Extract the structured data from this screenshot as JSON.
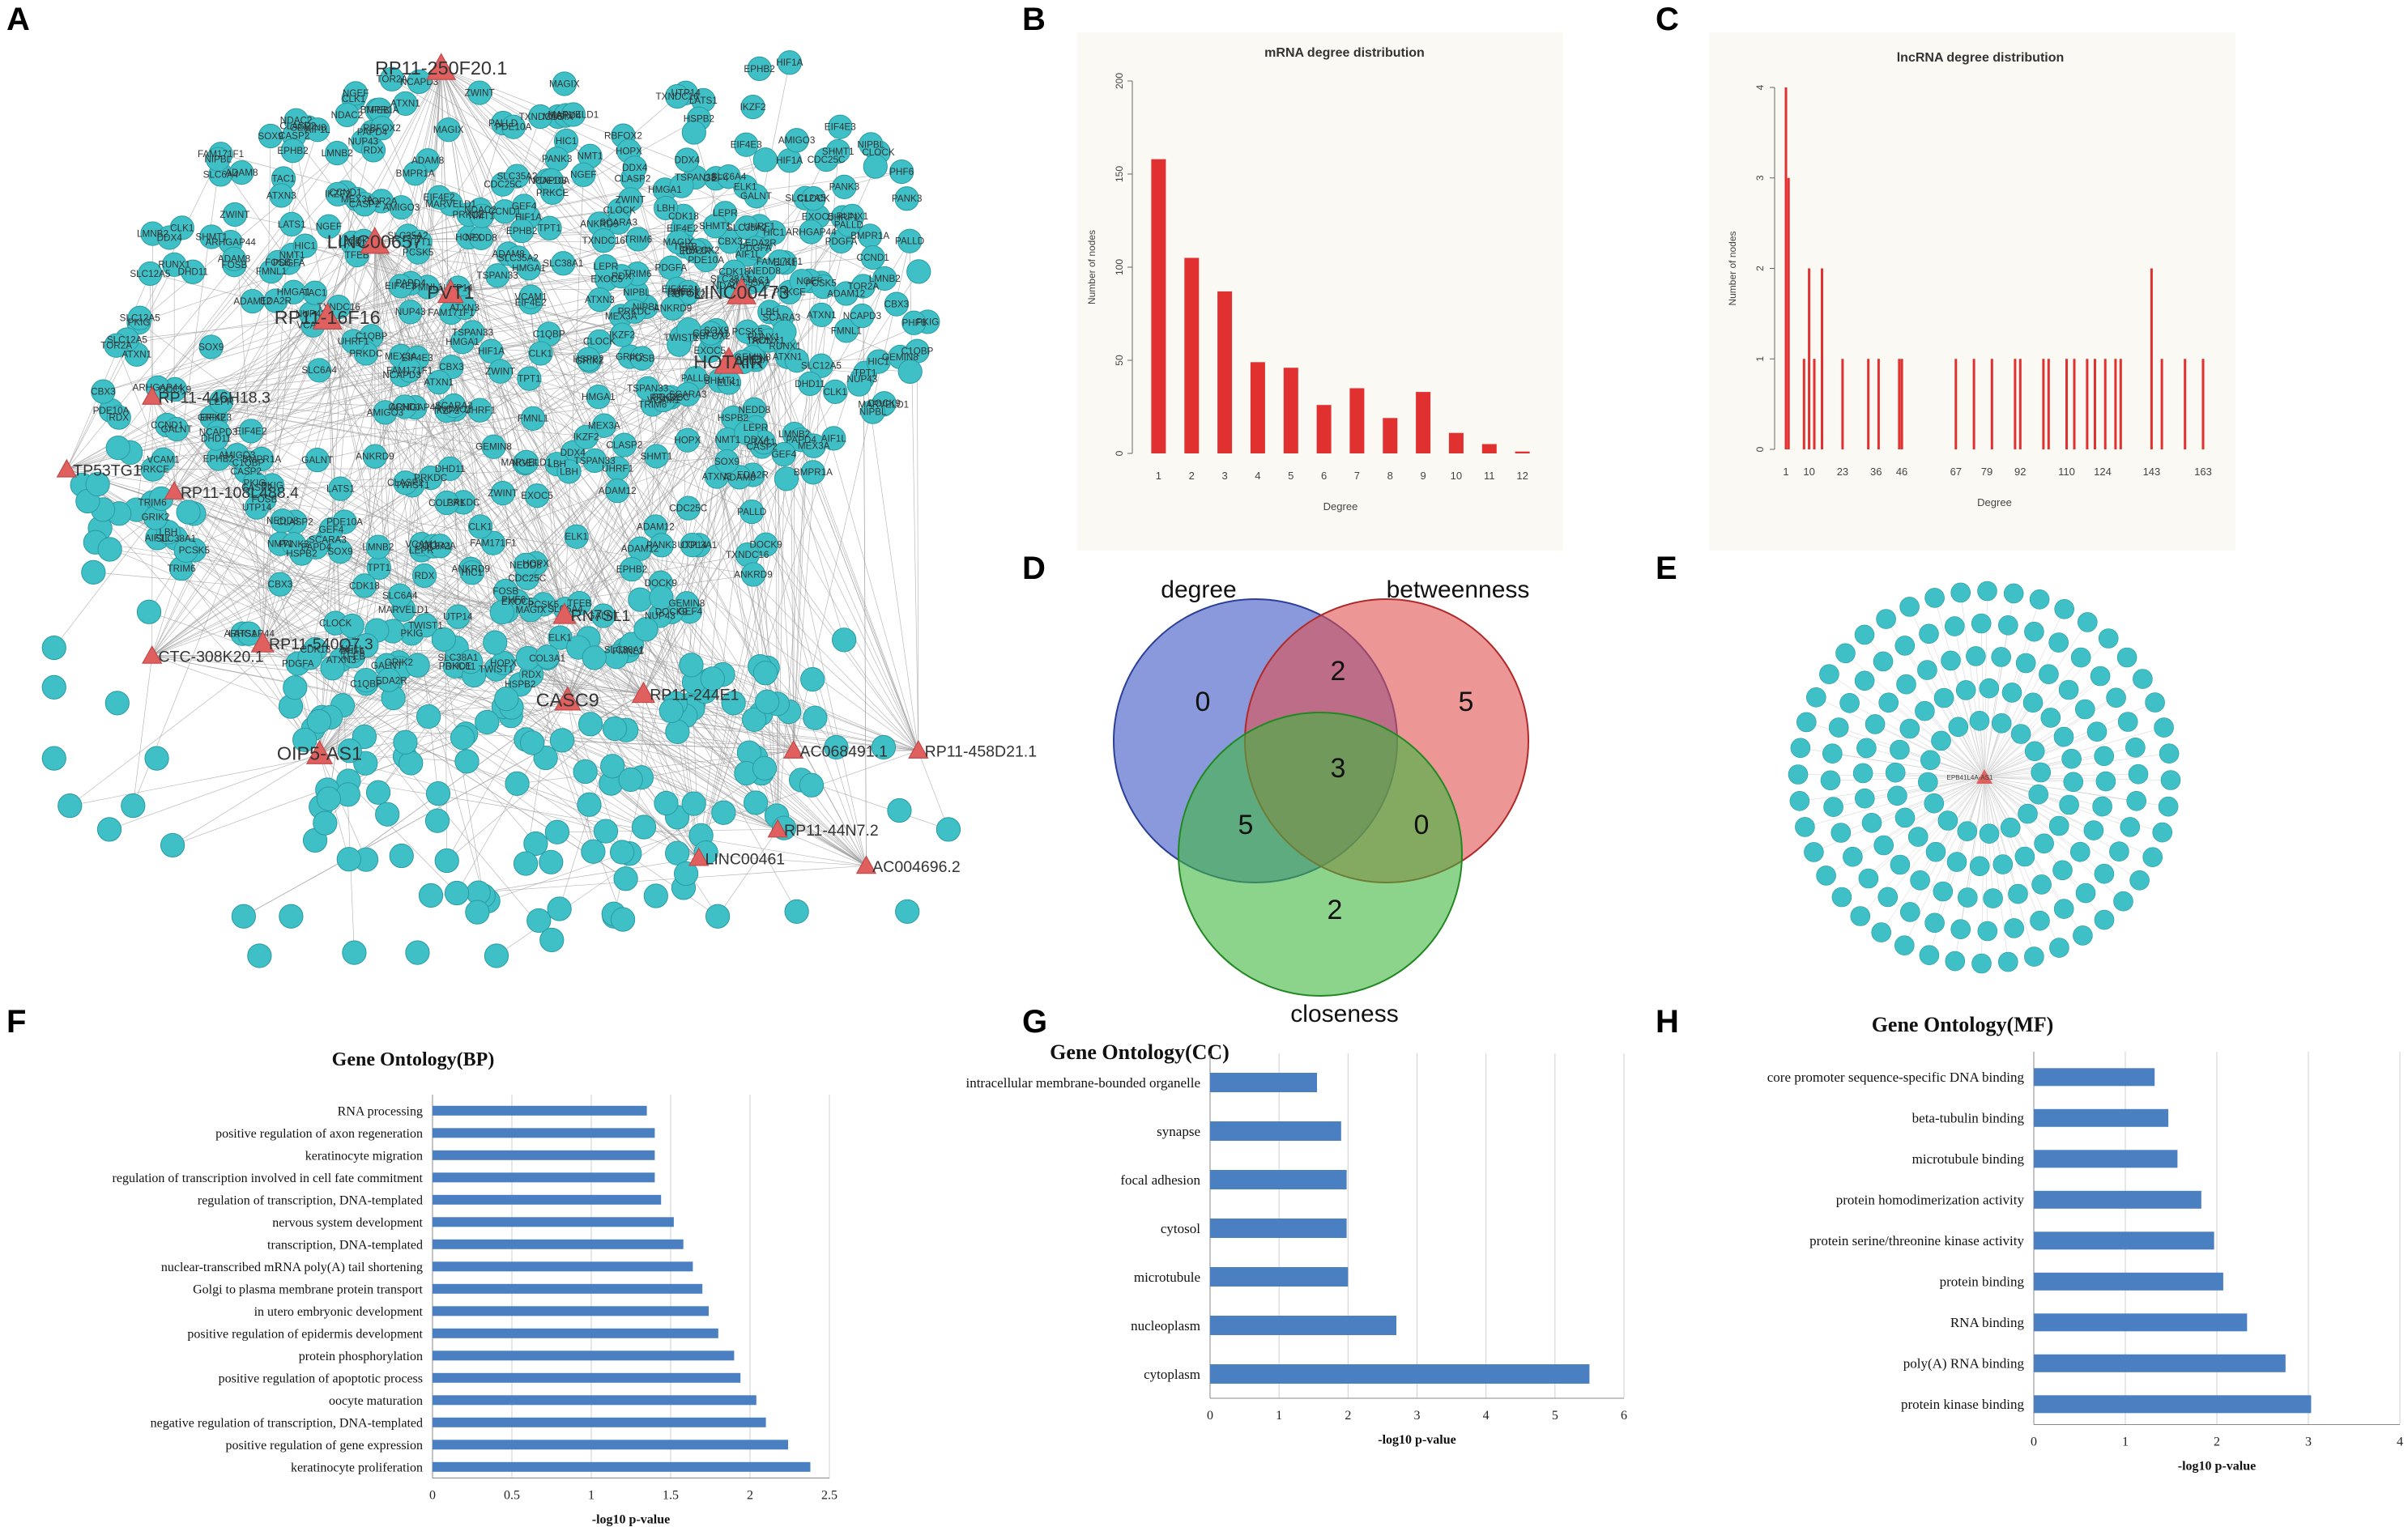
{
  "panels": {
    "A": "A",
    "B": "B",
    "C": "C",
    "D": "D",
    "E": "E",
    "F": "F",
    "G": "G",
    "H": "H"
  },
  "colors": {
    "node": "#3fbfc6",
    "nodeStroke": "#2a9aa1",
    "triangle": "#e06060",
    "edge": "#9a9a9a",
    "bar": "#e03030",
    "goBar": "#4a7fc1"
  },
  "network_A": {
    "lncrna_labels": [
      "RP11-250F20.1",
      "LINC00657",
      "RP11-446H18.3",
      "RP11-108L488.4",
      "RP11-540Q7.3",
      "CTC-308K20.1",
      "TP53TG1",
      "CASC9",
      "OIP5-AS1",
      "LINC00461",
      "RP11-244E1",
      "RN7SL1",
      "RP11-44N7.2",
      "AC004696.2",
      "AC068491.1",
      "RP11-458D21.1",
      "HOTAIR",
      "PVT1",
      "LINC00473",
      "RP11-16F16"
    ],
    "gene_labels": [
      "LATS1",
      "FAM171F1",
      "LMNB2",
      "SLC38A1",
      "TFEB",
      "MARVELD1",
      "ADAM8",
      "NUP43",
      "COL3A1",
      "TSPAN33",
      "ADAM12",
      "EIF4E2",
      "RDX",
      "EDA2R",
      "CASP2",
      "HMGA1",
      "ELK1",
      "NMT1",
      "EXOC5",
      "HOPX",
      "TRIM6",
      "TPT1",
      "PKIG",
      "FMNL1",
      "C1QBP",
      "TOR2A",
      "SLC35A2",
      "CLASP2",
      "AIF1L",
      "ARHGAP44",
      "PRKDC",
      "CBX3",
      "LEPR",
      "GALNT",
      "NCAPD3",
      "SLC12A5",
      "ZWINT",
      "HSPB2",
      "EPHB2",
      "CDK18",
      "PDE10A",
      "PCSK5",
      "RBFOX2",
      "NEDD8",
      "NGEF",
      "HIC1",
      "GRIK2",
      "SHMT1",
      "SLC6A4",
      "GEMIN8",
      "DHD11",
      "DOCK9",
      "UHRF1",
      "PRKCE",
      "ATXN3",
      "TWIST1",
      "FOSB",
      "CDC25C",
      "BMPR1A",
      "MAGIX",
      "CLK1",
      "NDAC2",
      "UTP14",
      "TAC1",
      "CCND1",
      "SOX9",
      "PAPD4",
      "VCAM1",
      "MEX3A",
      "CLOCK",
      "SCARA3",
      "ANKRD9",
      "PANK3",
      "RUNX1",
      "ATXN1",
      "HIF1A",
      "EIF4E3",
      "GEF4",
      "IKZF2",
      "PDGFA",
      "DDX4",
      "LBH",
      "PALLD",
      "AMIGO3",
      "PHF6",
      "NIPBL",
      "TXNDC16"
    ],
    "lncrna": [
      {
        "label": "RP11-250F20.1",
        "x": 265,
        "y": 38,
        "s": 18
      },
      {
        "label": "LINC00657",
        "x": 223,
        "y": 148,
        "s": 18
      },
      {
        "label": "RP11-16F16",
        "x": 193,
        "y": 196,
        "s": 18
      },
      {
        "label": "LINC00473",
        "x": 455,
        "y": 180,
        "s": 18
      },
      {
        "label": "HOTAIR",
        "x": 447,
        "y": 224,
        "s": 18
      },
      {
        "label": "PVT1",
        "x": 271,
        "y": 180,
        "s": 16
      },
      {
        "label": "RP11-446H18.3",
        "x": 82,
        "y": 246,
        "s": 12
      },
      {
        "label": "TP53TG1",
        "x": 28,
        "y": 292,
        "s": 12
      },
      {
        "label": "RP11-108L488.4",
        "x": 96,
        "y": 306,
        "s": 12
      },
      {
        "label": "RP11-540Q7.3",
        "x": 152,
        "y": 402,
        "s": 14
      },
      {
        "label": "CTC-308K20.1",
        "x": 82,
        "y": 410,
        "s": 12
      },
      {
        "label": "CASC9",
        "x": 345,
        "y": 438,
        "s": 16
      },
      {
        "label": "OIP5-AS1",
        "x": 188,
        "y": 472,
        "s": 16
      },
      {
        "label": "RN7SL1",
        "x": 343,
        "y": 384,
        "s": 14
      },
      {
        "label": "RP11-244E1",
        "x": 393,
        "y": 434,
        "s": 14
      },
      {
        "label": "LINC00461",
        "x": 428,
        "y": 538,
        "s": 12
      },
      {
        "label": "RP11-44N7.2",
        "x": 478,
        "y": 520,
        "s": 12
      },
      {
        "label": "AC004696.2",
        "x": 534,
        "y": 543,
        "s": 12
      },
      {
        "label": "AC068491.1",
        "x": 488,
        "y": 470,
        "s": 12
      },
      {
        "label": "RP11-458D21.1",
        "x": 567,
        "y": 470,
        "s": 12
      }
    ]
  },
  "chart_data": [
    {
      "type": "bar",
      "panel": "B",
      "title": "mRNA degree distribution",
      "xlabel": "Degree",
      "ylabel": "Number of nodes",
      "categories": [
        "1",
        "2",
        "3",
        "4",
        "5",
        "6",
        "7",
        "8",
        "9",
        "10",
        "11",
        "12"
      ],
      "values": [
        158,
        105,
        87,
        49,
        46,
        26,
        35,
        19,
        33,
        11,
        5,
        1
      ],
      "ylim": [
        0,
        200
      ],
      "yticks": [
        "0",
        "50",
        "100",
        "150",
        "200"
      ]
    },
    {
      "type": "bar",
      "panel": "C",
      "title": "lncRNA degree distribution",
      "xlabel": "Degree",
      "ylabel": "Number of nodes",
      "xticks": [
        "1",
        "10",
        "23",
        "36",
        "46",
        "67",
        "79",
        "92",
        "110",
        "124",
        "143",
        "163"
      ],
      "x": [
        1,
        2,
        8,
        10,
        12,
        15,
        23,
        33,
        37,
        45,
        46,
        67,
        74,
        81,
        90,
        92,
        101,
        103,
        110,
        113,
        118,
        121,
        125,
        129,
        131,
        143,
        147,
        156,
        163
      ],
      "values": [
        4,
        3,
        1,
        2,
        1,
        2,
        1,
        1,
        1,
        1,
        1,
        1,
        1,
        1,
        1,
        1,
        1,
        1,
        1,
        1,
        1,
        1,
        1,
        1,
        1,
        2,
        1,
        1,
        1
      ],
      "ylim": [
        0,
        4
      ],
      "yticks": [
        "0",
        "1",
        "2",
        "3",
        "4"
      ]
    },
    {
      "type": "venn",
      "panel": "D",
      "sets": [
        "degree",
        "betweenness",
        "closeness"
      ],
      "regions": {
        "degree_only": "0",
        "betweenness_only": "5",
        "closeness_only": "2",
        "degree_betweenness": "2",
        "degree_closeness": "5",
        "betweenness_closeness": "0",
        "all": "3"
      }
    },
    {
      "type": "bar",
      "orientation": "horizontal",
      "panel": "F",
      "title": "Gene Ontology(BP)",
      "xlabel": "-log10 p-value",
      "xlim": [
        0,
        2.5
      ],
      "xticks": [
        "0",
        "0.5",
        "1",
        "1.5",
        "2",
        "2.5"
      ],
      "categories": [
        "RNA processing",
        "positive regulation of axon regeneration",
        "keratinocyte migration",
        "regulation of transcription involved in cell fate commitment",
        "regulation of transcription, DNA-templated",
        "nervous system development",
        "transcription, DNA-templated",
        "nuclear-transcribed mRNA poly(A) tail shortening",
        "Golgi to plasma membrane protein transport",
        "in utero embryonic development",
        "positive regulation of epidermis development",
        "protein phosphorylation",
        "positive regulation of apoptotic process",
        "oocyte maturation",
        "negative regulation of transcription, DNA-templated",
        "positive regulation of gene expression",
        "keratinocyte proliferation"
      ],
      "values": [
        1.35,
        1.4,
        1.4,
        1.4,
        1.44,
        1.52,
        1.58,
        1.64,
        1.7,
        1.74,
        1.8,
        1.9,
        1.94,
        2.04,
        2.1,
        2.24,
        2.38
      ]
    },
    {
      "type": "bar",
      "orientation": "horizontal",
      "panel": "G",
      "title": "Gene Ontology(CC)",
      "xlabel": "-log10 p-value",
      "xlim": [
        0,
        6
      ],
      "xticks": [
        "0",
        "1",
        "2",
        "3",
        "4",
        "5",
        "6"
      ],
      "categories": [
        "intracellular membrane-bounded organelle",
        "synapse",
        "focal adhesion",
        "cytosol",
        "microtubule",
        "nucleoplasm",
        "cytoplasm"
      ],
      "values": [
        1.55,
        1.9,
        1.98,
        1.98,
        2.0,
        2.7,
        5.5
      ]
    },
    {
      "type": "bar",
      "orientation": "horizontal",
      "panel": "H",
      "title": "Gene Ontology(MF)",
      "xlabel": "-log10 p-value",
      "xlim": [
        0,
        4
      ],
      "xticks": [
        "0",
        "1",
        "2",
        "3",
        "4"
      ],
      "categories": [
        "core promoter sequence-specific DNA binding",
        "beta-tubulin binding",
        "microtubule binding",
        "protein homodimerization activity",
        "protein serine/threonine kinase activity",
        "protein binding",
        "RNA binding",
        "poly(A) RNA binding",
        "protein kinase binding"
      ],
      "values": [
        1.32,
        1.47,
        1.57,
        1.83,
        1.97,
        2.07,
        2.33,
        2.75,
        3.03
      ]
    }
  ],
  "star_E": {
    "center_label": "EPB41L4A-AS1",
    "node_count": 150
  }
}
